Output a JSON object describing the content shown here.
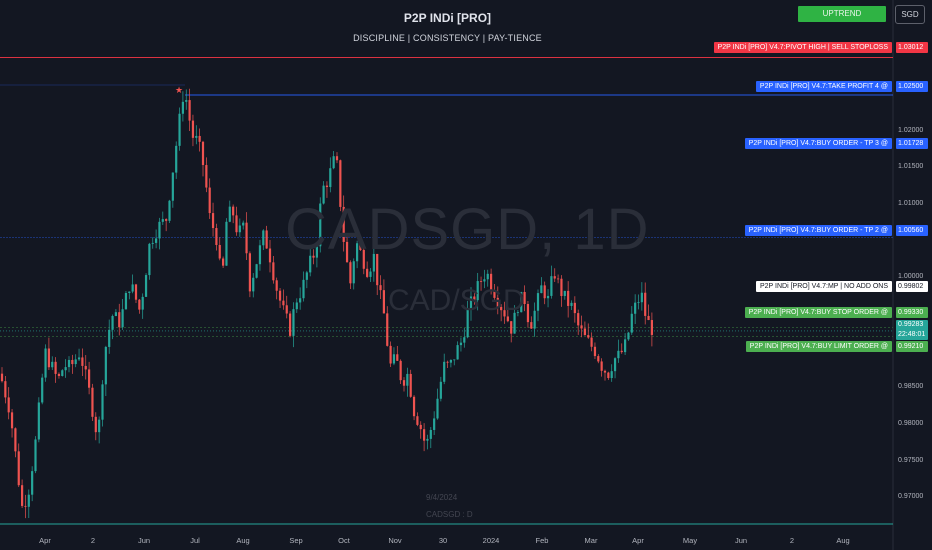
{
  "header": {
    "title": "P2P INDi [PRO]",
    "subtitle": "DISCIPLINE  |  CONSISTENCY  |  PAY-TIENCE",
    "trend_label": "UPTREND",
    "currency": "SGD"
  },
  "watermark": {
    "symbol": "CADSGD, 1D",
    "pair": "CAD/SGD",
    "date": "9/4/2024",
    "info": "CADSGD : D"
  },
  "levels": [
    {
      "label": "P2P INDi [PRO] V4.7:PIVOT HIGH | SELL STOPLOSS",
      "price": "1.03012",
      "value": 1.03012,
      "color": "#f23645",
      "text_color": "#ffffff"
    },
    {
      "label": "P2P INDi [PRO] V4.7:TAKE PROFIT 4 @",
      "price": "1.02500",
      "value": 1.025,
      "color": "#2962ff",
      "text_color": "#ffffff"
    },
    {
      "label": "P2P INDi [PRO] V4.7:BUY ORDER - TP 3 @",
      "price": "1.01728",
      "value": 1.01728,
      "color": "#2962ff",
      "text_color": "#ffffff"
    },
    {
      "label": "P2P INDi [PRO] V4.7:BUY ORDER - TP 2 @",
      "price": "1.00560",
      "value": 1.0056,
      "color": "#2962ff",
      "text_color": "#ffffff"
    },
    {
      "label": "P2P INDi [PRO] V4.7:MP  |  NO ADD ONS",
      "price": "0.99802",
      "value": 0.99802,
      "color": "#ffffff",
      "text_color": "#131722"
    },
    {
      "label": "P2P INDi [PRO] V4.7:BUY STOP ORDER @",
      "price": "0.99330",
      "value": 0.9933,
      "color": "#4caf50",
      "text_color": "#ffffff"
    },
    {
      "label": "P2P INDi [PRO] V4.7:BUY LIMIT ORDER @",
      "price": "0.99210",
      "value": 0.9921,
      "color": "#4caf50",
      "text_color": "#ffffff"
    }
  ],
  "current": {
    "price": "0.99283",
    "countdown": "22:48:01",
    "color": "#26a69a"
  },
  "chart_data": {
    "type": "candlestick",
    "symbol": "CADSGD",
    "interval": "1D",
    "ylim": [
      0.9665,
      1.0325
    ],
    "y_ticks": [
      "1.02000",
      "1.01500",
      "1.01000",
      "1.00000",
      "0.98500",
      "0.98000",
      "0.97500",
      "0.97000"
    ],
    "x_ticks": [
      "Apr",
      "2",
      "Jun",
      "Jul",
      "Aug",
      "Sep",
      "Oct",
      "Nov",
      "30",
      "2024",
      "Feb",
      "Mar",
      "Apr",
      "May",
      "Jun",
      "2",
      "Aug"
    ],
    "up_color": "#26a69a",
    "down_color": "#ef5350",
    "anchors": [
      [
        0,
        0.987
      ],
      [
        10,
        0.982
      ],
      [
        22,
        0.9688
      ],
      [
        28,
        0.9706
      ],
      [
        35,
        0.977
      ],
      [
        45,
        0.99
      ],
      [
        58,
        0.986
      ],
      [
        64,
        0.9882
      ],
      [
        70,
        0.9878
      ],
      [
        80,
        0.99
      ],
      [
        90,
        0.984
      ],
      [
        98,
        0.978
      ],
      [
        104,
        0.9895
      ],
      [
        112,
        0.995
      ],
      [
        120,
        0.994
      ],
      [
        130,
        0.9995
      ],
      [
        140,
        0.9955
      ],
      [
        150,
        1.005
      ],
      [
        158,
        1.007
      ],
      [
        166,
        1.008
      ],
      [
        174,
        1.016
      ],
      [
        180,
        1.022
      ],
      [
        184,
        1.026
      ],
      [
        188,
        1.023
      ],
      [
        192,
        1.0195
      ],
      [
        198,
        1.0185
      ],
      [
        204,
        1.015
      ],
      [
        210,
        1.008
      ],
      [
        216,
        1.006
      ],
      [
        222,
        0.999
      ],
      [
        226,
        1.0075
      ],
      [
        232,
        1.0095
      ],
      [
        238,
        1.006
      ],
      [
        244,
        1.007
      ],
      [
        250,
        0.999
      ],
      [
        258,
        1.003
      ],
      [
        264,
        1.006
      ],
      [
        270,
        1.003
      ],
      [
        276,
        0.999
      ],
      [
        282,
        0.996
      ],
      [
        290,
        0.993
      ],
      [
        296,
        0.997
      ],
      [
        302,
        0.9985
      ],
      [
        310,
        1.002
      ],
      [
        316,
        1.004
      ],
      [
        322,
        1.012
      ],
      [
        328,
        1.0135
      ],
      [
        334,
        1.016
      ],
      [
        338,
        1.015
      ],
      [
        342,
        1.007
      ],
      [
        346,
        1.003
      ],
      [
        350,
        0.999
      ],
      [
        356,
        1.005
      ],
      [
        362,
        1.003
      ],
      [
        368,
        1.001
      ],
      [
        374,
        1.003
      ],
      [
        378,
        0.999
      ],
      [
        384,
        0.995
      ],
      [
        390,
        0.988
      ],
      [
        396,
        0.989
      ],
      [
        402,
        0.986
      ],
      [
        408,
        0.987
      ],
      [
        414,
        0.982
      ],
      [
        420,
        0.98
      ],
      [
        426,
        0.977
      ],
      [
        432,
        0.98
      ],
      [
        438,
        0.984
      ],
      [
        444,
        0.988
      ],
      [
        450,
        0.988
      ],
      [
        456,
        0.99
      ],
      [
        462,
        0.9915
      ],
      [
        468,
        0.9955
      ],
      [
        474,
        0.9975
      ],
      [
        480,
        0.9995
      ],
      [
        486,
        1.001
      ],
      [
        492,
        0.999
      ],
      [
        500,
        0.9965
      ],
      [
        506,
        0.995
      ],
      [
        512,
        0.993
      ],
      [
        518,
        0.9965
      ],
      [
        524,
        0.9975
      ],
      [
        530,
        0.9935
      ],
      [
        536,
        0.996
      ],
      [
        542,
        0.999
      ],
      [
        548,
        0.997
      ],
      [
        554,
        1.001
      ],
      [
        560,
        0.9985
      ],
      [
        566,
        0.997
      ],
      [
        572,
        0.996
      ],
      [
        578,
        0.9935
      ],
      [
        584,
        0.992
      ],
      [
        590,
        0.991
      ],
      [
        596,
        0.99
      ],
      [
        602,
        0.988
      ],
      [
        608,
        0.987
      ],
      [
        614,
        0.989
      ],
      [
        620,
        0.9895
      ],
      [
        626,
        0.991
      ],
      [
        632,
        0.995
      ],
      [
        638,
        0.997
      ],
      [
        642,
        0.9975
      ],
      [
        646,
        0.9945
      ],
      [
        650,
        0.9935
      ],
      [
        654,
        0.9928
      ]
    ]
  }
}
